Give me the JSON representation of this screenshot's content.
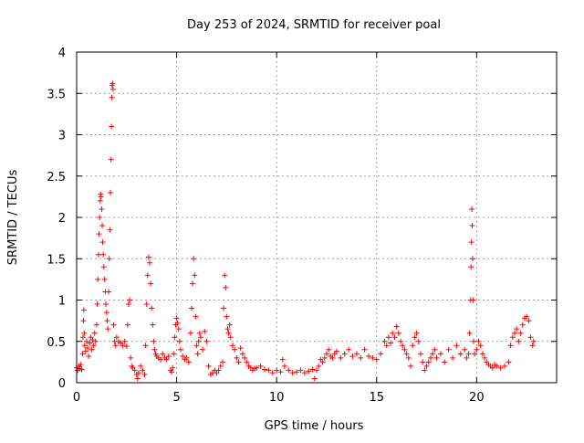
{
  "chart_data": {
    "type": "scatter",
    "title": "Day 253 of 2024, SRMTID for receiver poal",
    "xlabel": "GPS time / hours",
    "ylabel": "SRMTID / TECUs",
    "xlim": [
      0,
      24
    ],
    "ylim": [
      0,
      4
    ],
    "xticks": [
      0,
      5,
      10,
      15,
      20
    ],
    "yticks": [
      0,
      0.5,
      1,
      1.5,
      2,
      2.5,
      3,
      3.5,
      4
    ],
    "xtick_labels": [
      "0",
      "5",
      "10",
      "15",
      "20"
    ],
    "ytick_labels": [
      "0",
      "0.5",
      "1",
      "1.5",
      "2",
      "2.5",
      "3",
      "3.5",
      "4"
    ],
    "grid": true,
    "marker": "+",
    "color": "#ff0000",
    "series": [
      {
        "name": "poal",
        "points": [
          [
            0.0,
            0.18
          ],
          [
            0.05,
            0.15
          ],
          [
            0.1,
            0.2
          ],
          [
            0.15,
            0.17
          ],
          [
            0.2,
            0.22
          ],
          [
            0.25,
            0.16
          ],
          [
            0.3,
            0.35
          ],
          [
            0.32,
            0.55
          ],
          [
            0.34,
            0.75
          ],
          [
            0.36,
            0.88
          ],
          [
            0.38,
            0.6
          ],
          [
            0.4,
            0.45
          ],
          [
            0.45,
            0.38
          ],
          [
            0.5,
            0.5
          ],
          [
            0.55,
            0.42
          ],
          [
            0.6,
            0.32
          ],
          [
            0.65,
            0.48
          ],
          [
            0.7,
            0.55
          ],
          [
            0.75,
            0.4
          ],
          [
            0.8,
            0.52
          ],
          [
            0.85,
            0.45
          ],
          [
            0.9,
            0.6
          ],
          [
            0.95,
            0.5
          ],
          [
            1.0,
            0.7
          ],
          [
            1.03,
            0.95
          ],
          [
            1.06,
            1.25
          ],
          [
            1.09,
            1.55
          ],
          [
            1.12,
            1.8
          ],
          [
            1.15,
            2.0
          ],
          [
            1.18,
            2.2
          ],
          [
            1.2,
            2.28
          ],
          [
            1.22,
            2.25
          ],
          [
            1.25,
            2.1
          ],
          [
            1.28,
            1.9
          ],
          [
            1.3,
            1.7
          ],
          [
            1.33,
            1.55
          ],
          [
            1.36,
            1.4
          ],
          [
            1.4,
            1.25
          ],
          [
            1.43,
            1.1
          ],
          [
            1.46,
            0.95
          ],
          [
            1.5,
            0.85
          ],
          [
            1.53,
            0.75
          ],
          [
            1.56,
            0.65
          ],
          [
            1.6,
            1.1
          ],
          [
            1.63,
            1.5
          ],
          [
            1.66,
            1.85
          ],
          [
            1.69,
            2.3
          ],
          [
            1.72,
            2.7
          ],
          [
            1.74,
            3.1
          ],
          [
            1.76,
            3.45
          ],
          [
            1.78,
            3.6
          ],
          [
            1.8,
            3.62
          ],
          [
            1.82,
            3.55
          ],
          [
            1.85,
            0.7
          ],
          [
            1.9,
            0.5
          ],
          [
            1.95,
            0.45
          ],
          [
            2.0,
            0.55
          ],
          [
            2.1,
            0.5
          ],
          [
            2.2,
            0.48
          ],
          [
            2.3,
            0.45
          ],
          [
            2.4,
            0.5
          ],
          [
            2.5,
            0.44
          ],
          [
            2.55,
            0.7
          ],
          [
            2.6,
            0.95
          ],
          [
            2.65,
            1.0
          ],
          [
            2.7,
            0.3
          ],
          [
            2.75,
            0.2
          ],
          [
            2.8,
            0.18
          ],
          [
            2.9,
            0.15
          ],
          [
            3.0,
            0.1
          ],
          [
            3.05,
            0.05
          ],
          [
            3.1,
            0.12
          ],
          [
            3.2,
            0.2
          ],
          [
            3.3,
            0.15
          ],
          [
            3.4,
            0.1
          ],
          [
            3.45,
            0.45
          ],
          [
            3.5,
            0.95
          ],
          [
            3.55,
            1.3
          ],
          [
            3.6,
            1.52
          ],
          [
            3.65,
            1.45
          ],
          [
            3.7,
            1.2
          ],
          [
            3.75,
            0.9
          ],
          [
            3.8,
            0.7
          ],
          [
            3.85,
            0.5
          ],
          [
            3.9,
            0.4
          ],
          [
            3.95,
            0.35
          ],
          [
            4.0,
            0.32
          ],
          [
            4.1,
            0.3
          ],
          [
            4.2,
            0.28
          ],
          [
            4.3,
            0.35
          ],
          [
            4.4,
            0.3
          ],
          [
            4.5,
            0.28
          ],
          [
            4.6,
            0.32
          ],
          [
            4.7,
            0.15
          ],
          [
            4.75,
            0.13
          ],
          [
            4.8,
            0.18
          ],
          [
            4.85,
            0.35
          ],
          [
            4.9,
            0.55
          ],
          [
            4.95,
            0.7
          ],
          [
            5.0,
            0.78
          ],
          [
            5.05,
            0.72
          ],
          [
            5.1,
            0.65
          ],
          [
            5.15,
            0.5
          ],
          [
            5.2,
            0.4
          ],
          [
            5.3,
            0.32
          ],
          [
            5.4,
            0.28
          ],
          [
            5.5,
            0.3
          ],
          [
            5.6,
            0.25
          ],
          [
            5.7,
            0.6
          ],
          [
            5.75,
            0.9
          ],
          [
            5.8,
            1.2
          ],
          [
            5.85,
            1.5
          ],
          [
            5.9,
            1.3
          ],
          [
            5.95,
            0.8
          ],
          [
            6.0,
            0.45
          ],
          [
            6.05,
            0.35
          ],
          [
            6.1,
            0.5
          ],
          [
            6.15,
            0.6
          ],
          [
            6.2,
            0.55
          ],
          [
            6.3,
            0.4
          ],
          [
            6.4,
            0.62
          ],
          [
            6.5,
            0.5
          ],
          [
            6.6,
            0.2
          ],
          [
            6.7,
            0.1
          ],
          [
            6.8,
            0.12
          ],
          [
            6.9,
            0.15
          ],
          [
            7.0,
            0.12
          ],
          [
            7.1,
            0.15
          ],
          [
            7.2,
            0.2
          ],
          [
            7.3,
            0.25
          ],
          [
            7.35,
            0.9
          ],
          [
            7.4,
            1.3
          ],
          [
            7.45,
            1.15
          ],
          [
            7.5,
            0.8
          ],
          [
            7.55,
            0.65
          ],
          [
            7.6,
            0.6
          ],
          [
            7.65,
            0.7
          ],
          [
            7.7,
            0.55
          ],
          [
            7.8,
            0.45
          ],
          [
            7.9,
            0.4
          ],
          [
            8.0,
            0.3
          ],
          [
            8.1,
            0.25
          ],
          [
            8.2,
            0.42
          ],
          [
            8.3,
            0.35
          ],
          [
            8.4,
            0.3
          ],
          [
            8.5,
            0.25
          ],
          [
            8.6,
            0.2
          ],
          [
            8.7,
            0.18
          ],
          [
            8.8,
            0.15
          ],
          [
            8.9,
            0.17
          ],
          [
            9.0,
            0.18
          ],
          [
            9.2,
            0.2
          ],
          [
            9.4,
            0.16
          ],
          [
            9.6,
            0.15
          ],
          [
            9.8,
            0.12
          ],
          [
            10.0,
            0.15
          ],
          [
            10.2,
            0.13
          ],
          [
            10.3,
            0.28
          ],
          [
            10.4,
            0.2
          ],
          [
            10.6,
            0.15
          ],
          [
            10.8,
            0.12
          ],
          [
            11.0,
            0.13
          ],
          [
            11.2,
            0.15
          ],
          [
            11.4,
            0.12
          ],
          [
            11.6,
            0.14
          ],
          [
            11.8,
            0.16
          ],
          [
            11.9,
            0.05
          ],
          [
            12.0,
            0.15
          ],
          [
            12.1,
            0.2
          ],
          [
            12.2,
            0.28
          ],
          [
            12.3,
            0.25
          ],
          [
            12.4,
            0.3
          ],
          [
            12.5,
            0.35
          ],
          [
            12.6,
            0.4
          ],
          [
            12.7,
            0.32
          ],
          [
            12.8,
            0.3
          ],
          [
            12.9,
            0.35
          ],
          [
            13.0,
            0.38
          ],
          [
            13.2,
            0.3
          ],
          [
            13.4,
            0.35
          ],
          [
            13.6,
            0.4
          ],
          [
            13.8,
            0.32
          ],
          [
            14.0,
            0.35
          ],
          [
            14.2,
            0.3
          ],
          [
            14.4,
            0.4
          ],
          [
            14.6,
            0.32
          ],
          [
            14.8,
            0.3
          ],
          [
            15.0,
            0.28
          ],
          [
            15.2,
            0.35
          ],
          [
            15.4,
            0.5
          ],
          [
            15.5,
            0.45
          ],
          [
            15.6,
            0.55
          ],
          [
            15.7,
            0.48
          ],
          [
            15.8,
            0.6
          ],
          [
            15.9,
            0.55
          ],
          [
            16.0,
            0.68
          ],
          [
            16.1,
            0.6
          ],
          [
            16.2,
            0.5
          ],
          [
            16.3,
            0.45
          ],
          [
            16.4,
            0.4
          ],
          [
            16.5,
            0.35
          ],
          [
            16.6,
            0.3
          ],
          [
            16.7,
            0.2
          ],
          [
            16.8,
            0.45
          ],
          [
            16.9,
            0.55
          ],
          [
            17.0,
            0.6
          ],
          [
            17.1,
            0.5
          ],
          [
            17.2,
            0.35
          ],
          [
            17.3,
            0.25
          ],
          [
            17.4,
            0.15
          ],
          [
            17.5,
            0.2
          ],
          [
            17.6,
            0.25
          ],
          [
            17.7,
            0.3
          ],
          [
            17.8,
            0.35
          ],
          [
            17.9,
            0.4
          ],
          [
            18.0,
            0.3
          ],
          [
            18.2,
            0.35
          ],
          [
            18.4,
            0.25
          ],
          [
            18.6,
            0.4
          ],
          [
            18.8,
            0.3
          ],
          [
            19.0,
            0.45
          ],
          [
            19.2,
            0.35
          ],
          [
            19.4,
            0.4
          ],
          [
            19.5,
            0.3
          ],
          [
            19.6,
            0.35
          ],
          [
            19.65,
            0.6
          ],
          [
            19.7,
            1.0
          ],
          [
            19.72,
            1.4
          ],
          [
            19.74,
            1.7
          ],
          [
            19.76,
            2.1
          ],
          [
            19.78,
            1.9
          ],
          [
            19.8,
            1.5
          ],
          [
            19.82,
            1.0
          ],
          [
            19.85,
            0.5
          ],
          [
            19.9,
            0.35
          ],
          [
            20.0,
            0.4
          ],
          [
            20.1,
            0.5
          ],
          [
            20.2,
            0.45
          ],
          [
            20.3,
            0.35
          ],
          [
            20.4,
            0.3
          ],
          [
            20.5,
            0.25
          ],
          [
            20.6,
            0.22
          ],
          [
            20.7,
            0.2
          ],
          [
            20.8,
            0.18
          ],
          [
            20.9,
            0.22
          ],
          [
            21.0,
            0.2
          ],
          [
            21.2,
            0.18
          ],
          [
            21.4,
            0.2
          ],
          [
            21.6,
            0.25
          ],
          [
            21.7,
            0.45
          ],
          [
            21.8,
            0.55
          ],
          [
            21.9,
            0.6
          ],
          [
            22.0,
            0.65
          ],
          [
            22.1,
            0.5
          ],
          [
            22.2,
            0.6
          ],
          [
            22.3,
            0.7
          ],
          [
            22.4,
            0.78
          ],
          [
            22.5,
            0.8
          ],
          [
            22.6,
            0.75
          ],
          [
            22.7,
            0.55
          ],
          [
            22.8,
            0.45
          ],
          [
            22.85,
            0.5
          ]
        ]
      }
    ]
  }
}
